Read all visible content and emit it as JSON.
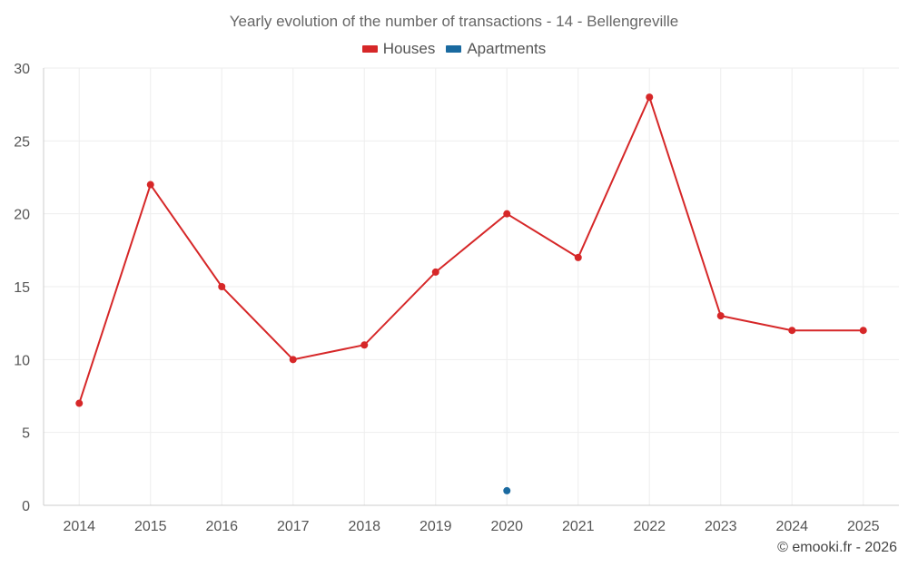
{
  "chart_data": {
    "type": "line",
    "title": "Yearly evolution of the number of transactions - 14 - Bellengreville",
    "xlabel": "",
    "ylabel": "",
    "categories": [
      "2014",
      "2015",
      "2016",
      "2017",
      "2018",
      "2019",
      "2020",
      "2021",
      "2022",
      "2023",
      "2024",
      "2025"
    ],
    "ylim": [
      0,
      30
    ],
    "yticks": [
      0,
      5,
      10,
      15,
      20,
      25,
      30
    ],
    "grid": true,
    "legend_position": "top-center",
    "series": [
      {
        "name": "Houses",
        "color": "#d62728",
        "values": [
          7,
          22,
          15,
          10,
          11,
          16,
          20,
          17,
          28,
          13,
          12,
          12
        ]
      },
      {
        "name": "Apartments",
        "color": "#1a6aa0",
        "values": [
          null,
          null,
          null,
          null,
          null,
          null,
          1,
          null,
          null,
          null,
          null,
          null
        ]
      }
    ]
  },
  "credit": "© emooki.fr - 2026"
}
